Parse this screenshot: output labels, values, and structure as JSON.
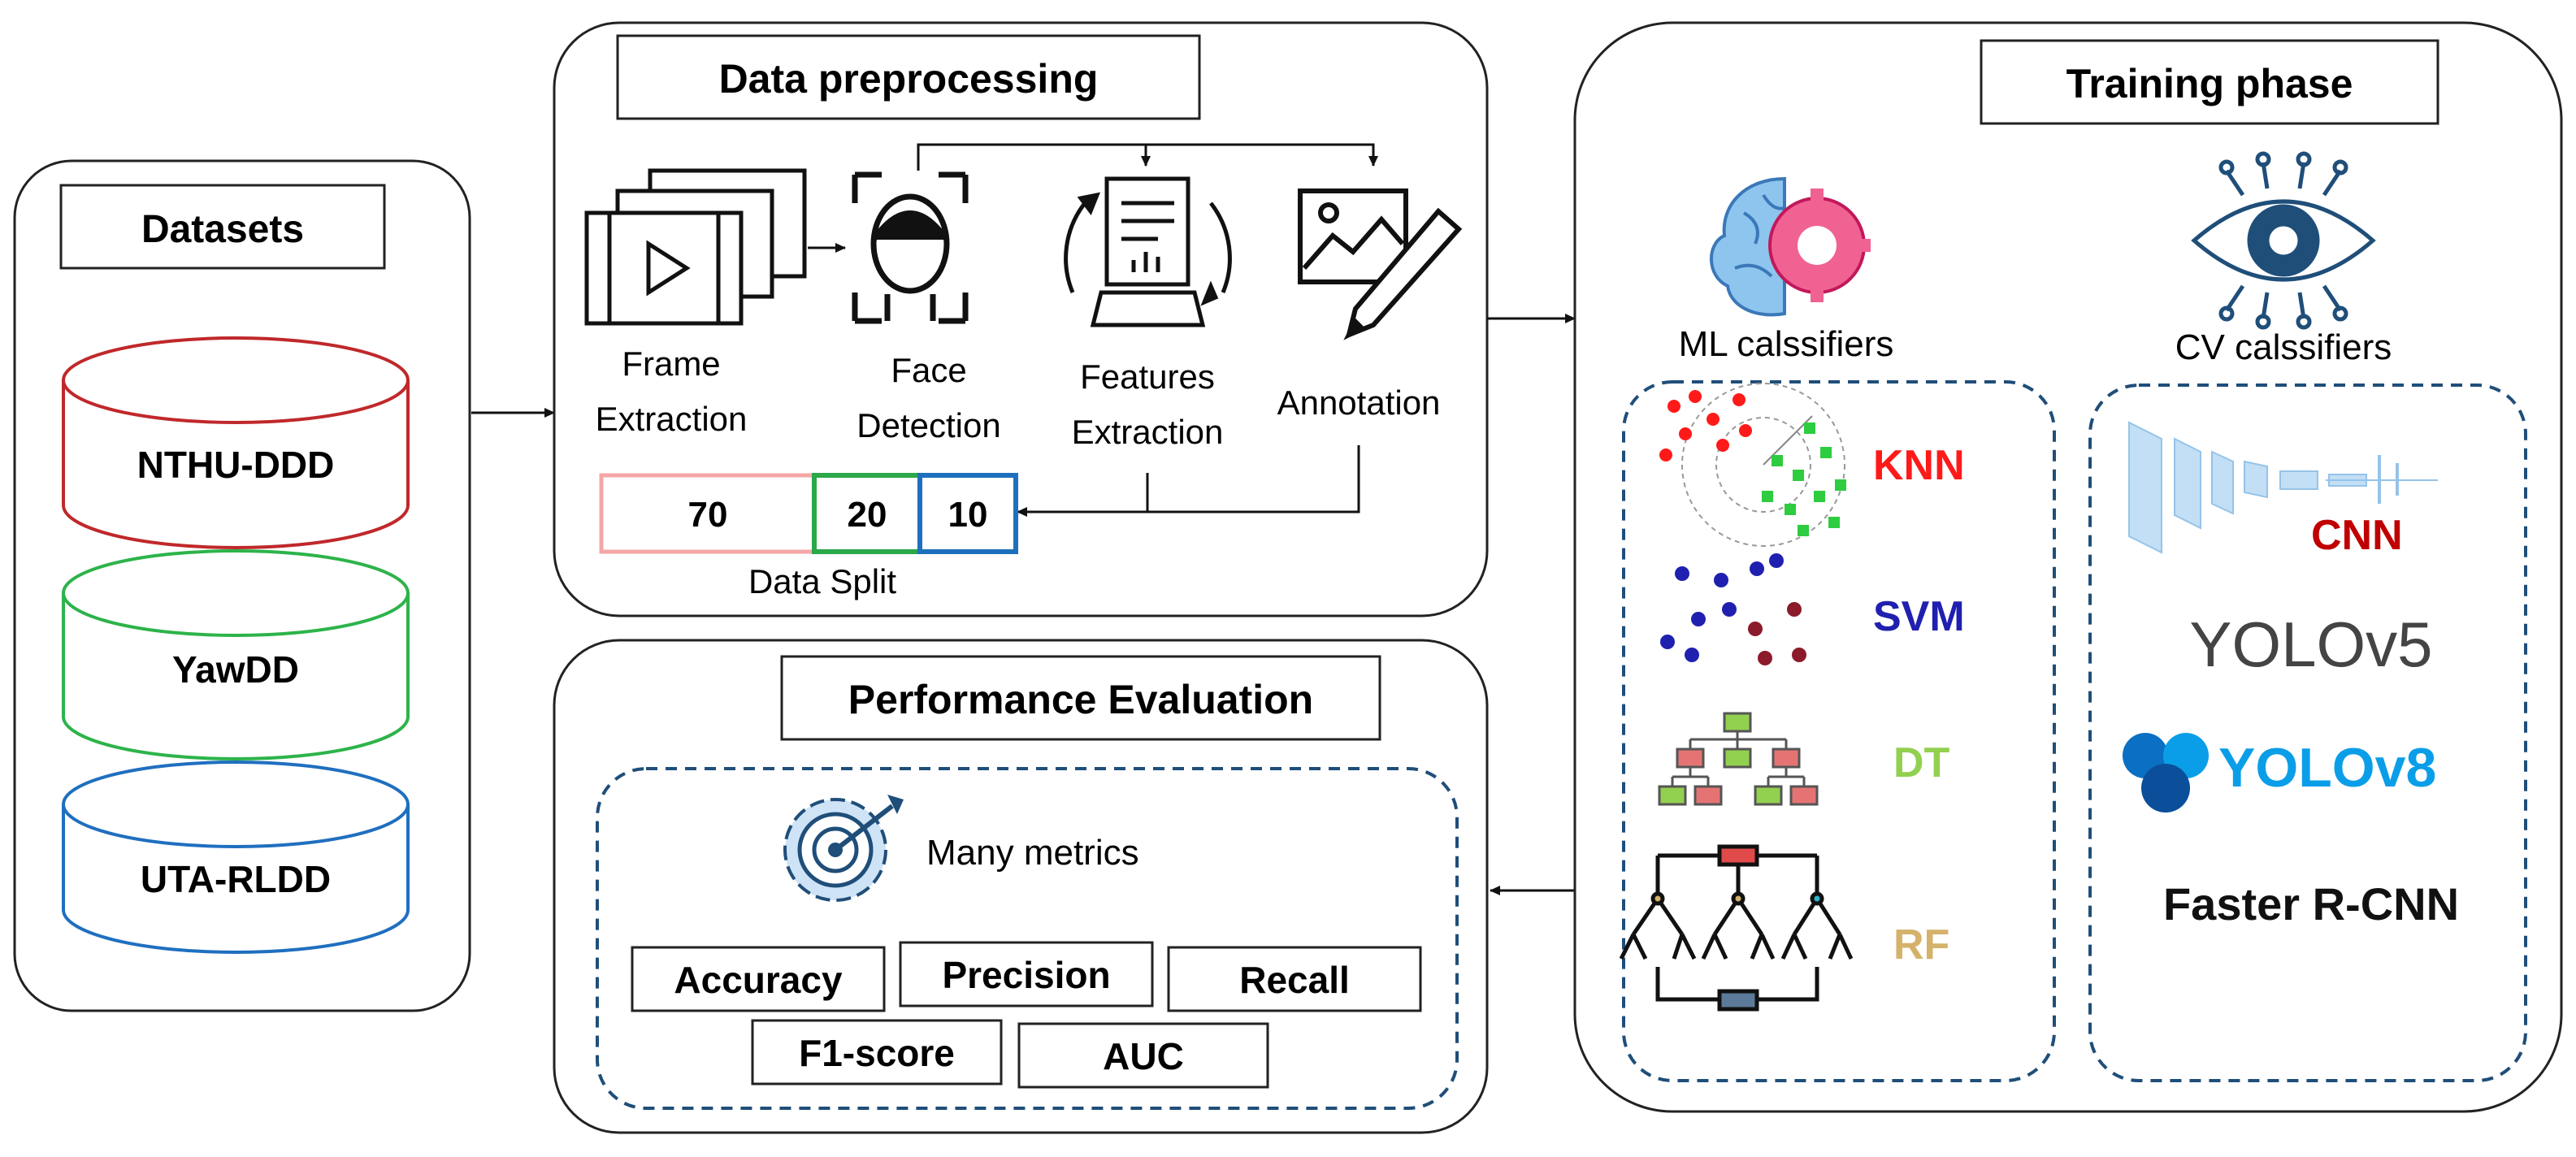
{
  "colors": {
    "nthu": "#c0282b",
    "yaw": "#2db34a",
    "uta": "#1f6fbf",
    "knn": "#ff1a1a",
    "svm": "#2020b0",
    "dt": "#92d050",
    "rf": "#d4b26a",
    "cnn": "#c00000",
    "yolo8": "#0b9ee8",
    "split70": "#f4a6a6",
    "split20": "#2aa84a",
    "split10": "#1f6fbf",
    "dashed": "#1f4e79"
  },
  "datasets": {
    "title": "Datasets",
    "items": [
      "NTHU-DDD",
      "YawDD",
      "UTA-RLDD"
    ]
  },
  "preprocessing": {
    "title": "Data preprocessing",
    "steps": [
      {
        "icon": "film-frames-icon",
        "lines": [
          "Frame",
          "Extraction"
        ]
      },
      {
        "icon": "face-scan-icon",
        "lines": [
          "Face",
          "Detection"
        ]
      },
      {
        "icon": "feature-gear-icon",
        "lines": [
          "Features",
          "Extraction"
        ]
      },
      {
        "icon": "image-pencil-icon",
        "lines": [
          "Annotation"
        ]
      }
    ],
    "split": {
      "values": [
        "70",
        "20",
        "10"
      ],
      "label": "Data Split"
    }
  },
  "evaluation": {
    "title": "Performance Evaluation",
    "icon": "target-gear-icon",
    "subtitle": "Many metrics",
    "metrics_row1": [
      "Accuracy",
      "Precision",
      "Recall"
    ],
    "metrics_row2": [
      "F1-score",
      "AUC"
    ]
  },
  "training": {
    "title": "Training phase",
    "ml": {
      "icon": "brain-gear-icon",
      "label": "ML calssifiers",
      "items": [
        "KNN",
        "SVM",
        "DT",
        "RF"
      ]
    },
    "cv": {
      "icon": "eye-circuit-icon",
      "label": "CV calssifiers",
      "items": [
        "CNN",
        "YOLOv5",
        "YOLOv8",
        "Faster R-CNN"
      ]
    }
  }
}
